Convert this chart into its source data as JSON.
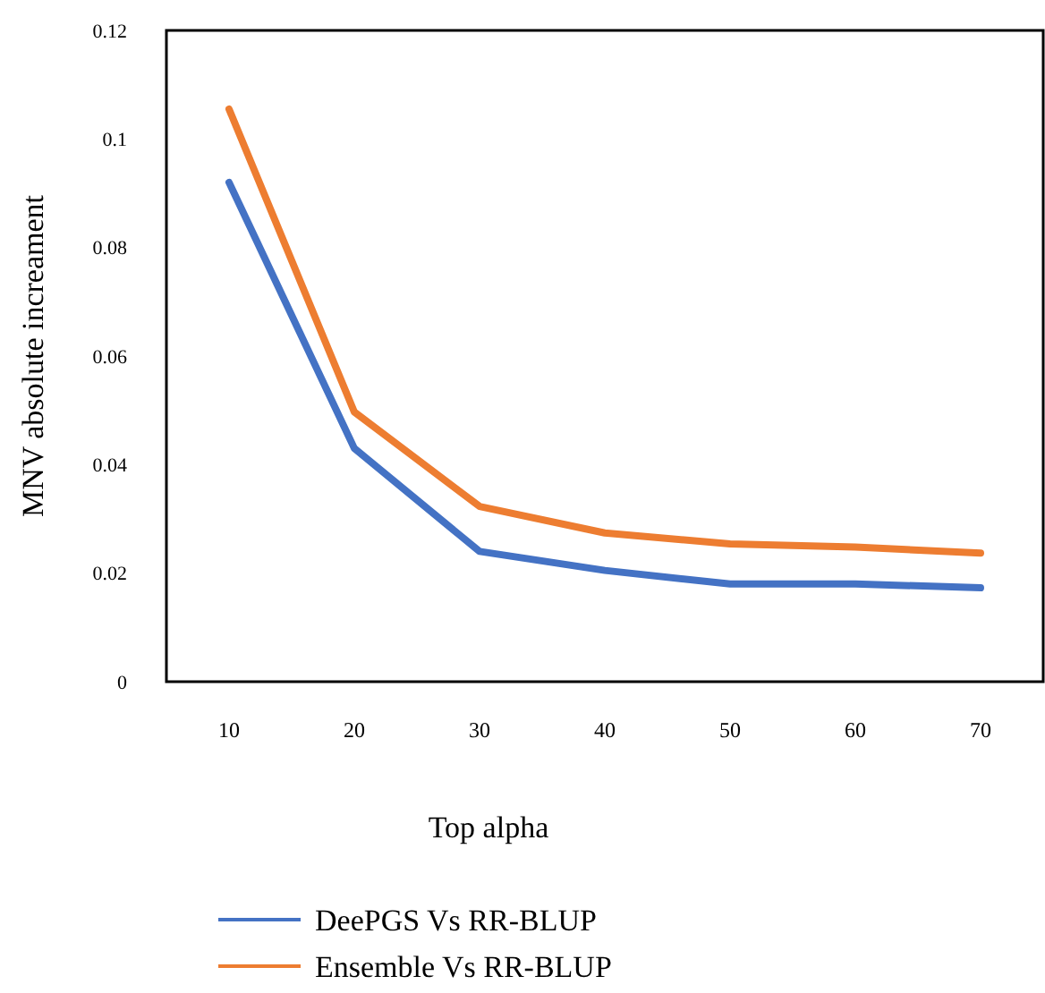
{
  "chart_data": {
    "type": "line",
    "xlabel": "Top alpha",
    "ylabel": "MNV absolute increament",
    "categories": [
      "10",
      "20",
      "30",
      "40",
      "50",
      "60",
      "70"
    ],
    "series": [
      {
        "name": "DeePGS Vs RR-BLUP",
        "color": "#4472c4",
        "values": [
          0.092,
          0.043,
          0.024,
          0.0205,
          0.018,
          0.018,
          0.0173
        ]
      },
      {
        "name": "Ensemble Vs RR-BLUP",
        "color": "#ed7d31",
        "values": [
          0.1055,
          0.0497,
          0.0323,
          0.0274,
          0.0254,
          0.0248,
          0.0237
        ]
      }
    ],
    "ylim": [
      0,
      0.12
    ],
    "yticks": [
      0,
      0.02,
      0.04,
      0.06,
      0.08,
      0.1,
      0.12
    ],
    "grid": false,
    "legend": "bottom",
    "marker": "none",
    "line_style": "solid"
  }
}
